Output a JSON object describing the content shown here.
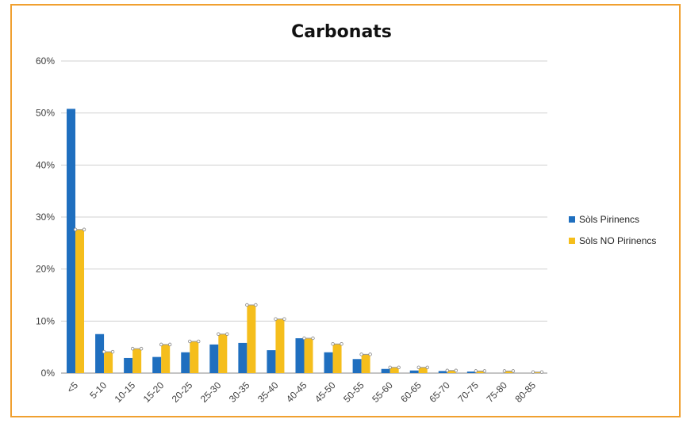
{
  "chart_data": {
    "type": "bar",
    "title": "Carbonats",
    "xlabel": "",
    "ylabel": "",
    "ylim": [
      0,
      60
    ],
    "y_tick_labels": [
      "0%",
      "10%",
      "20%",
      "30%",
      "40%",
      "50%",
      "60%"
    ],
    "y_ticks": [
      0,
      10,
      20,
      30,
      40,
      50,
      60
    ],
    "grid": true,
    "legend_position": "right",
    "categories": [
      "<5",
      "5-10",
      "10-15",
      "15-20",
      "20-25",
      "25-30",
      "30-35",
      "35-40",
      "40-45",
      "45-50",
      "50-55",
      "55-60",
      "60-65",
      "65-70",
      "70-75",
      "75-80",
      "80-85"
    ],
    "series": [
      {
        "name": "Sòls Pirinencs",
        "color": "#1f6fbf",
        "values": [
          50.8,
          7.5,
          2.9,
          3.1,
          4.0,
          5.5,
          5.8,
          4.4,
          6.7,
          4.0,
          2.7,
          0.8,
          0.5,
          0.4,
          0.3,
          0.0,
          0.0
        ]
      },
      {
        "name": "Sòls NO Pirinencs",
        "color": "#f5be1c",
        "values": [
          27.6,
          4.1,
          4.7,
          5.5,
          6.1,
          7.5,
          13.1,
          10.4,
          6.7,
          5.6,
          3.6,
          1.1,
          1.1,
          0.5,
          0.4,
          0.4,
          0.2
        ]
      }
    ]
  }
}
